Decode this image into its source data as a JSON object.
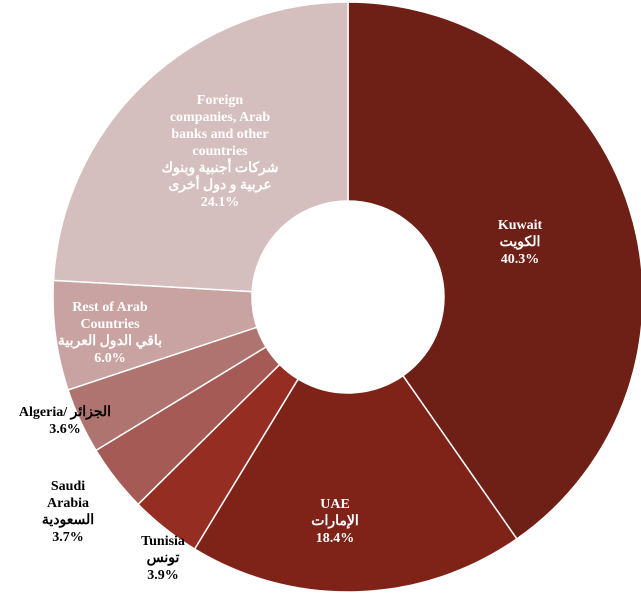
{
  "chart_data": {
    "type": "donut",
    "categories": [
      [
        "Kuwait",
        "الكويت"
      ],
      [
        "UAE",
        "الإمارات"
      ],
      [
        "Tunisia",
        "تونس"
      ],
      [
        "Saudi",
        "Arabia",
        "السعودية"
      ],
      [
        "Algeria/ الجزائر"
      ],
      [
        "Rest of Arab",
        "Countries",
        "باقي الدول العربية"
      ],
      [
        "Foreign",
        "companies, Arab",
        "banks and other",
        "countries",
        "شركات أجنبية وبنوك",
        "عربية و دول أخرى"
      ]
    ],
    "values": [
      40.3,
      18.4,
      3.9,
      3.7,
      3.6,
      6.0,
      24.1
    ],
    "value_labels": [
      "40.3%",
      "18.4%",
      "3.9%",
      "3.7%",
      "3.6%",
      "6.0%",
      "24.1%"
    ],
    "colors": [
      "#6e1f16",
      "#7f2218",
      "#962d22",
      "#a65a55",
      "#b07470",
      "#c9a3a1",
      "#d5bfbe"
    ]
  }
}
